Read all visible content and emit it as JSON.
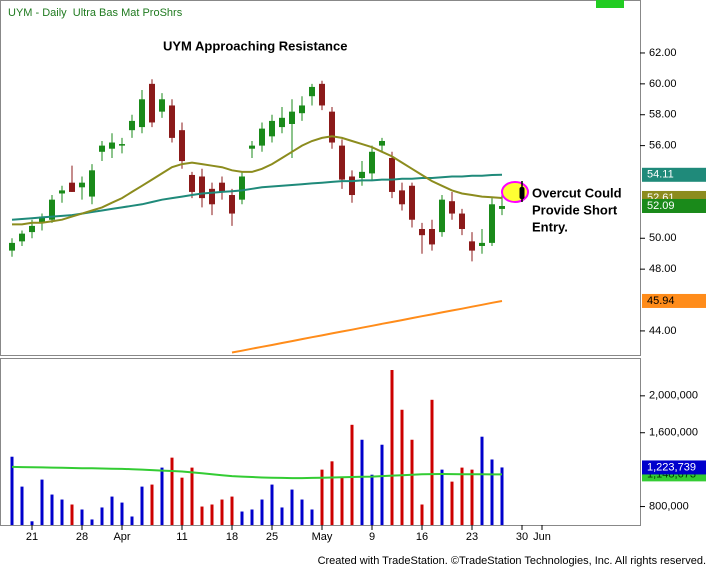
{
  "footer": "Created with TradeStation. ©TradeStation Technologies, Inc. All rights reserved.",
  "chart_data": [
    {
      "type": "candlestick",
      "title": "UYM - Daily  Ultra Bas Mat ProShrs",
      "annotations": [
        {
          "text": "UYM Approaching Resistance"
        },
        {
          "text": "Overcut Could"
        },
        {
          "text": "Provide Short"
        },
        {
          "text": "Entry."
        }
      ],
      "xlim": [
        -1.2,
        62.8
      ],
      "xticks": [
        {
          "value": 2,
          "label": "21"
        },
        {
          "value": 7,
          "label": "28"
        },
        {
          "value": 11,
          "label": "Apr"
        },
        {
          "value": 17,
          "label": "11"
        },
        {
          "value": 22,
          "label": "18"
        },
        {
          "value": 26,
          "label": "25"
        },
        {
          "value": 31,
          "label": "May"
        },
        {
          "value": 36,
          "label": "9"
        },
        {
          "value": 41,
          "label": "16"
        },
        {
          "value": 46,
          "label": "23"
        },
        {
          "value": 51,
          "label": "30"
        },
        {
          "value": 53,
          "label": "Jun"
        }
      ],
      "ylim": [
        42.44,
        65.43
      ],
      "yticks": [
        {
          "value": 44,
          "label": "44.00"
        },
        {
          "value": 48,
          "label": "48.00"
        },
        {
          "value": 50,
          "label": "50.00"
        },
        {
          "value": 56,
          "label": "56.00"
        },
        {
          "value": 58,
          "label": "58.00"
        },
        {
          "value": 60,
          "label": "60.00"
        },
        {
          "value": 62,
          "label": "62.00"
        }
      ],
      "up_color": "#1a8a1a",
      "down_color": "#8b1a1a",
      "ohlc": [
        [
          49.2,
          50.0,
          48.8,
          49.7
        ],
        [
          49.8,
          50.5,
          49.5,
          50.3
        ],
        [
          50.4,
          51.2,
          50.0,
          50.8
        ],
        [
          51.0,
          51.6,
          50.5,
          51.4
        ],
        [
          51.2,
          52.8,
          51.0,
          52.5
        ],
        [
          52.9,
          53.4,
          52.3,
          53.1
        ],
        [
          53.6,
          54.7,
          53.0,
          53.0
        ],
        [
          53.3,
          54.0,
          52.5,
          53.6
        ],
        [
          52.7,
          54.8,
          52.2,
          54.4
        ],
        [
          55.6,
          56.3,
          55.0,
          56.0
        ],
        [
          55.8,
          56.8,
          55.2,
          56.2
        ],
        [
          56.0,
          56.5,
          55.5,
          56.1
        ],
        [
          57.0,
          58.0,
          56.5,
          57.6
        ],
        [
          57.2,
          59.6,
          56.8,
          59.0
        ],
        [
          60.0,
          60.3,
          57.2,
          57.5
        ],
        [
          58.2,
          59.4,
          57.8,
          59.0
        ],
        [
          58.6,
          59.0,
          56.2,
          56.5
        ],
        [
          57.0,
          57.5,
          54.5,
          55.0
        ],
        [
          54.1,
          54.3,
          52.6,
          53.0
        ],
        [
          54.0,
          54.5,
          52.0,
          52.6
        ],
        [
          53.2,
          53.6,
          51.5,
          52.2
        ],
        [
          53.6,
          54.0,
          52.5,
          53.0
        ],
        [
          52.8,
          53.2,
          50.8,
          51.6
        ],
        [
          52.5,
          54.3,
          52.2,
          54.0
        ],
        [
          55.8,
          56.3,
          55.2,
          56.0
        ],
        [
          56.0,
          57.5,
          55.6,
          57.1
        ],
        [
          56.6,
          58.0,
          56.2,
          57.6
        ],
        [
          57.2,
          58.5,
          56.8,
          57.8
        ],
        [
          57.4,
          59.0,
          55.2,
          58.2
        ],
        [
          58.1,
          59.2,
          57.6,
          58.6
        ],
        [
          59.2,
          60.0,
          58.6,
          59.8
        ],
        [
          60.0,
          60.2,
          58.3,
          58.6
        ],
        [
          58.2,
          58.5,
          55.8,
          56.2
        ],
        [
          56.0,
          56.4,
          53.2,
          53.8
        ],
        [
          54.0,
          54.4,
          52.3,
          52.8
        ],
        [
          53.9,
          55.0,
          53.4,
          54.3
        ],
        [
          54.2,
          56.0,
          53.8,
          55.6
        ],
        [
          56.0,
          56.5,
          55.6,
          56.3
        ],
        [
          55.2,
          55.6,
          52.6,
          53.0
        ],
        [
          53.1,
          53.6,
          51.8,
          52.2
        ],
        [
          53.4,
          53.6,
          50.7,
          51.2
        ],
        [
          50.6,
          51.0,
          49.0,
          50.2
        ],
        [
          50.6,
          51.2,
          49.2,
          49.6
        ],
        [
          50.4,
          52.8,
          50.1,
          52.5
        ],
        [
          52.4,
          53.0,
          51.2,
          51.6
        ],
        [
          51.6,
          51.9,
          50.2,
          50.6
        ],
        [
          49.8,
          50.4,
          48.5,
          49.2
        ],
        [
          49.5,
          50.6,
          49.0,
          49.7
        ],
        [
          49.7,
          52.6,
          49.5,
          52.2
        ],
        [
          51.9,
          53.0,
          51.5,
          52.09
        ]
      ],
      "last_color": "#1a8a1a",
      "series": [
        {
          "color": "#1f8a7a",
          "values": [
            51.2,
            51.25,
            51.3,
            51.35,
            51.4,
            51.45,
            51.5,
            51.6,
            51.7,
            51.8,
            51.9,
            52.0,
            52.1,
            52.2,
            52.35,
            52.5,
            52.6,
            52.7,
            52.8,
            52.9,
            52.95,
            53.0,
            53.05,
            53.1,
            53.2,
            53.3,
            53.35,
            53.4,
            53.45,
            53.5,
            53.55,
            53.6,
            53.65,
            53.7,
            53.7,
            53.75,
            53.75,
            53.8,
            53.8,
            53.85,
            53.85,
            53.9,
            53.9,
            53.95,
            54.0,
            54.0,
            54.05,
            54.05,
            54.1,
            54.11
          ]
        },
        {
          "color": "#8c8c1e",
          "values": [
            50.9,
            50.9,
            51.0,
            51.0,
            51.1,
            51.2,
            51.4,
            51.6,
            51.8,
            52.0,
            52.3,
            52.6,
            53.0,
            53.4,
            53.8,
            54.2,
            54.6,
            54.8,
            54.9,
            54.8,
            54.7,
            54.6,
            54.4,
            54.3,
            54.3,
            54.5,
            54.8,
            55.2,
            55.6,
            56.0,
            56.3,
            56.5,
            56.6,
            56.5,
            56.3,
            56.1,
            55.9,
            55.6,
            55.3,
            54.9,
            54.5,
            54.1,
            53.7,
            53.4,
            53.1,
            52.9,
            52.8,
            52.7,
            52.65,
            52.61
          ]
        },
        {
          "color": "#ff8c1a",
          "values": [
            null,
            null,
            null,
            null,
            null,
            null,
            null,
            null,
            null,
            null,
            null,
            null,
            null,
            null,
            null,
            null,
            null,
            null,
            null,
            null,
            null,
            null,
            42.6,
            42.72,
            42.85,
            42.97,
            43.09,
            43.22,
            43.34,
            43.47,
            43.59,
            43.71,
            43.84,
            43.96,
            44.08,
            44.21,
            44.33,
            44.46,
            44.58,
            44.7,
            44.83,
            44.95,
            45.07,
            45.2,
            45.32,
            45.44,
            45.57,
            45.69,
            45.82,
            45.94
          ]
        }
      ]
    },
    {
      "type": "bar",
      "ylim": [
        600000,
        2410000
      ],
      "yticks": [
        {
          "value": 800000,
          "label": "800,000"
        },
        {
          "value": 1600000,
          "label": "1,600,000"
        },
        {
          "value": 2000000,
          "label": "2,000,000"
        }
      ],
      "up_color": "#0000cc",
      "down_color": "#cc0000",
      "color": "#0000cc",
      "values": [
        1340000,
        1016000,
        640000,
        1092000,
        930000,
        876000,
        822000,
        768000,
        660000,
        790000,
        908000,
        843000,
        692000,
        1016000,
        1038000,
        1222000,
        1330000,
        1113000,
        1222000,
        800000,
        822000,
        876000,
        908000,
        746000,
        768000,
        876000,
        1038000,
        790000,
        984000,
        876000,
        768000,
        1200000,
        1290000,
        1113000,
        1686000,
        1524000,
        1145000,
        1470000,
        2280000,
        1849000,
        1524000,
        822000,
        1957000,
        1200000,
        1070000,
        1222000,
        1200000,
        1557000,
        1310000,
        1223739
      ],
      "last_label": "1,223,739",
      "series": [
        {
          "color": "#33cc33",
          "values": [
            1230000,
            1228000,
            1226000,
            1224000,
            1222000,
            1220000,
            1218000,
            1216000,
            1214000,
            1212000,
            1210000,
            1208000,
            1205000,
            1200000,
            1195000,
            1190000,
            1185000,
            1180000,
            1170000,
            1160000,
            1150000,
            1140000,
            1130000,
            1125000,
            1120000,
            1115000,
            1112000,
            1110000,
            1108000,
            1108000,
            1110000,
            1112000,
            1115000,
            1118000,
            1120000,
            1122000,
            1125000,
            1130000,
            1135000,
            1140000,
            1145000,
            1150000,
            1152000,
            1153000,
            1152000,
            1151000,
            1150000,
            1149000,
            1148800,
            1148673
          ],
          "last_label": "1,148,673"
        }
      ]
    }
  ]
}
